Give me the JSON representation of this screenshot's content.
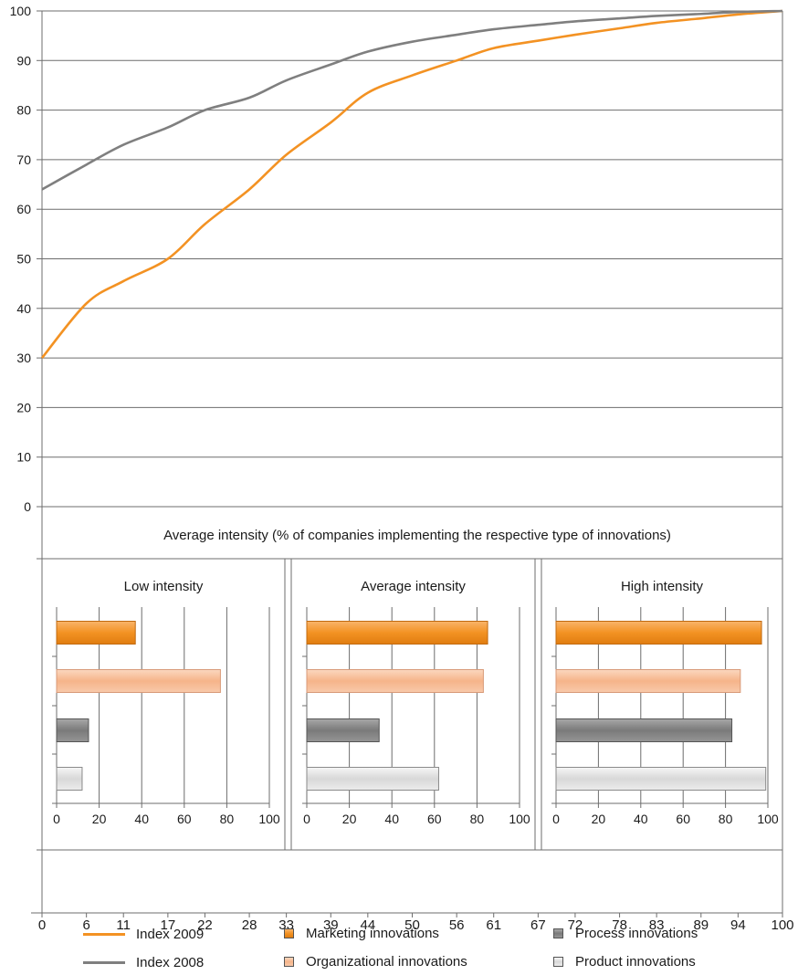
{
  "chart_data": [
    {
      "type": "line",
      "title": "",
      "xlabel": "",
      "ylabel": "",
      "x_ticks": [
        "0",
        "6",
        "11",
        "17",
        "22",
        "28",
        "33",
        "39",
        "44",
        "50",
        "56",
        "61",
        "67",
        "72",
        "78",
        "83",
        "89",
        "94",
        "100"
      ],
      "y_ticks": [
        "0",
        "10",
        "20",
        "30",
        "40",
        "50",
        "60",
        "70",
        "80",
        "90",
        "100"
      ],
      "xlim": [
        0,
        100
      ],
      "ylim": [
        0,
        100
      ],
      "grid": "horizontal",
      "series": [
        {
          "name": "Index 2009",
          "color": "#f39223",
          "x": [
            0,
            6,
            11,
            17,
            22,
            28,
            33,
            39,
            44,
            50,
            56,
            61,
            67,
            72,
            78,
            83,
            89,
            94,
            100
          ],
          "y": [
            30,
            41,
            45.5,
            50,
            57,
            64,
            71,
            77.5,
            83.5,
            87,
            90,
            92.5,
            94,
            95.2,
            96.5,
            97.6,
            98.5,
            99.3,
            100
          ]
        },
        {
          "name": "Index 2008",
          "color": "#7f7f7f",
          "x": [
            0,
            6,
            11,
            17,
            22,
            28,
            33,
            39,
            44,
            50,
            56,
            61,
            67,
            72,
            78,
            83,
            89,
            94,
            100
          ],
          "y": [
            64,
            69,
            73,
            76.5,
            80,
            82.5,
            86,
            89.2,
            91.8,
            93.8,
            95.2,
            96.3,
            97.2,
            97.9,
            98.5,
            99,
            99.4,
            99.8,
            100
          ]
        }
      ]
    },
    {
      "type": "bar",
      "title": "Average intensity (% of companies implementing the respective type of innovations)",
      "orientation": "horizontal",
      "categories": [
        "Marketing innovations",
        "Organizational innovations",
        "Process innovations",
        "Product innovations"
      ],
      "xlim": [
        0,
        100
      ],
      "x_ticks": [
        "0",
        "20",
        "40",
        "60",
        "80",
        "100"
      ],
      "panels": [
        {
          "title": "Low intensity",
          "values": [
            37,
            77,
            15,
            12
          ]
        },
        {
          "title": "Average intensity",
          "values": [
            85,
            83,
            34,
            62
          ]
        },
        {
          "title": "High intensity",
          "values": [
            97,
            87,
            83,
            99
          ]
        }
      ]
    }
  ],
  "legend": [
    {
      "label": "Index 2009",
      "kind": "line",
      "color": "#f39223"
    },
    {
      "label": "Index 2008",
      "kind": "line",
      "color": "#7f7f7f"
    },
    {
      "label": "Marketing innovations",
      "kind": "box",
      "color": "#f39223"
    },
    {
      "label": "Organizational innovations",
      "kind": "box",
      "color": "#f7c29e"
    },
    {
      "label": "Process innovations",
      "kind": "box",
      "color": "#8c8c8c"
    },
    {
      "label": "Product innovations",
      "kind": "box",
      "color": "#ebebeb"
    }
  ]
}
